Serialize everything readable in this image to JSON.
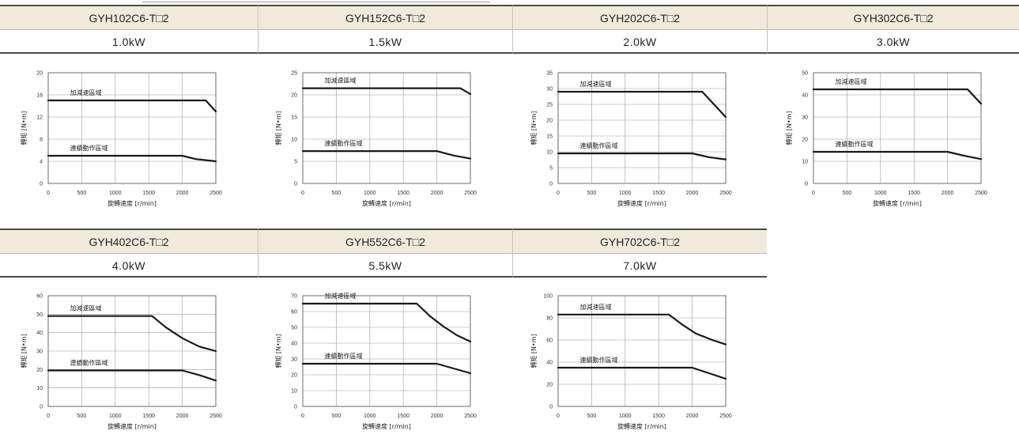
{
  "header_rows": [
    {
      "cells": [
        {
          "model": "GYH102C6-T□2",
          "power": "1.0kW"
        },
        {
          "model": "GYH152C6-T□2",
          "power": "1.5kW"
        },
        {
          "model": "GYH202C6-T□2",
          "power": "2.0kW"
        },
        {
          "model": "GYH302C6-T□2",
          "power": "3.0kW"
        }
      ]
    },
    {
      "cells": [
        {
          "model": "GYH402C6-T□2",
          "power": "4.0kW"
        },
        {
          "model": "GYH552C6-T□2",
          "power": "5.5kW"
        },
        {
          "model": "GYH702C6-T□2",
          "power": "7.0kW"
        }
      ]
    }
  ],
  "chart_data": [
    {
      "type": "line",
      "title": "",
      "xlabel": "旋轉速度 [r/min]",
      "ylabel": "轉矩 [N•m]",
      "xlim": [
        0,
        2500
      ],
      "ylim": [
        0,
        20
      ],
      "x_ticks": [
        0,
        500,
        1000,
        1500,
        2000,
        2500
      ],
      "y_ticks": [
        0,
        4,
        8,
        12,
        16,
        20
      ],
      "grid": true,
      "series": [
        {
          "name": "加減速區域",
          "points": [
            [
              0,
              15
            ],
            [
              2350,
              15
            ],
            [
              2500,
              13
            ]
          ]
        },
        {
          "name": "連續動作區域",
          "points": [
            [
              0,
              5
            ],
            [
              2000,
              5
            ],
            [
              2200,
              4.4
            ],
            [
              2500,
              4
            ]
          ]
        }
      ]
    },
    {
      "type": "line",
      "title": "",
      "xlabel": "旋轉速度 [r/min]",
      "ylabel": "轉矩 [N•m]",
      "xlim": [
        0,
        2500
      ],
      "ylim": [
        0,
        25
      ],
      "x_ticks": [
        0,
        500,
        1000,
        1500,
        2000,
        2500
      ],
      "y_ticks": [
        0,
        5,
        10,
        15,
        20,
        25
      ],
      "grid": true,
      "series": [
        {
          "name": "加減速區域",
          "points": [
            [
              0,
              21.5
            ],
            [
              2350,
              21.5
            ],
            [
              2500,
              20.2
            ]
          ]
        },
        {
          "name": "連續動作區域",
          "points": [
            [
              0,
              7.3
            ],
            [
              2000,
              7.3
            ],
            [
              2250,
              6.3
            ],
            [
              2500,
              5.6
            ]
          ]
        }
      ]
    },
    {
      "type": "line",
      "title": "",
      "xlabel": "旋轉速度 [r/min]",
      "ylabel": "轉矩 [N•m]",
      "xlim": [
        0,
        2500
      ],
      "ylim": [
        0,
        35
      ],
      "x_ticks": [
        0,
        500,
        1000,
        1500,
        2000,
        2500
      ],
      "y_ticks": [
        0,
        5,
        10,
        15,
        20,
        25,
        30,
        35
      ],
      "grid": true,
      "series": [
        {
          "name": "加減速區域",
          "points": [
            [
              0,
              29
            ],
            [
              2150,
              29
            ],
            [
              2500,
              21
            ]
          ]
        },
        {
          "name": "連續動作區域",
          "points": [
            [
              0,
              9.5
            ],
            [
              2000,
              9.5
            ],
            [
              2250,
              8.3
            ],
            [
              2500,
              7.6
            ]
          ]
        }
      ]
    },
    {
      "type": "line",
      "title": "",
      "xlabel": "旋轉速度 [r/min]",
      "ylabel": "轉矩 [N•m]",
      "xlim": [
        0,
        2500
      ],
      "ylim": [
        0,
        50
      ],
      "x_ticks": [
        0,
        500,
        1000,
        1500,
        2000,
        2500
      ],
      "y_ticks": [
        0,
        10,
        20,
        30,
        40,
        50
      ],
      "grid": true,
      "series": [
        {
          "name": "加減速區域",
          "points": [
            [
              0,
              42.5
            ],
            [
              2300,
              42.5
            ],
            [
              2500,
              36
            ]
          ]
        },
        {
          "name": "連續動作區域",
          "points": [
            [
              0,
              14.3
            ],
            [
              2000,
              14.3
            ],
            [
              2250,
              12.5
            ],
            [
              2500,
              11
            ]
          ]
        }
      ]
    },
    {
      "type": "line",
      "title": "",
      "xlabel": "旋轉速度 [r/min]",
      "ylabel": "轉矩 [N•m]",
      "xlim": [
        0,
        2500
      ],
      "ylim": [
        0,
        60
      ],
      "x_ticks": [
        0,
        500,
        1000,
        1500,
        2000,
        2500
      ],
      "y_ticks": [
        0,
        10,
        20,
        30,
        40,
        50,
        60
      ],
      "grid": true,
      "series": [
        {
          "name": "加減速區域",
          "points": [
            [
              0,
              49
            ],
            [
              1550,
              49
            ],
            [
              1750,
              43
            ],
            [
              2000,
              37
            ],
            [
              2250,
              32.5
            ],
            [
              2500,
              30
            ]
          ]
        },
        {
          "name": "連續動作區域",
          "points": [
            [
              0,
              19.5
            ],
            [
              2000,
              19.5
            ],
            [
              2250,
              17
            ],
            [
              2500,
              14
            ]
          ]
        }
      ]
    },
    {
      "type": "line",
      "title": "",
      "xlabel": "旋轉速度 [r/min]",
      "ylabel": "轉矩 [N•m]",
      "xlim": [
        0,
        2500
      ],
      "ylim": [
        0,
        70
      ],
      "x_ticks": [
        0,
        500,
        1000,
        1500,
        2000,
        2500
      ],
      "y_ticks": [
        0,
        10,
        20,
        30,
        40,
        50,
        60,
        70
      ],
      "grid": true,
      "series": [
        {
          "name": "加減速區域",
          "points": [
            [
              0,
              65
            ],
            [
              1700,
              65
            ],
            [
              1900,
              57
            ],
            [
              2100,
              50.5
            ],
            [
              2300,
              45
            ],
            [
              2500,
              41
            ]
          ]
        },
        {
          "name": "連續動作區域",
          "points": [
            [
              0,
              27
            ],
            [
              2000,
              27
            ],
            [
              2250,
              24
            ],
            [
              2500,
              21
            ]
          ]
        }
      ]
    },
    {
      "type": "line",
      "title": "",
      "xlabel": "旋轉速度 [r/min]",
      "ylabel": "轉矩 [N•m]",
      "xlim": [
        0,
        2500
      ],
      "ylim": [
        0,
        100
      ],
      "x_ticks": [
        0,
        500,
        1000,
        1500,
        2000,
        2500
      ],
      "y_ticks": [
        0,
        20,
        40,
        60,
        80,
        100
      ],
      "grid": true,
      "series": [
        {
          "name": "加減速區域",
          "points": [
            [
              0,
              83
            ],
            [
              1650,
              83
            ],
            [
              1850,
              74
            ],
            [
              2050,
              66
            ],
            [
              2300,
              60
            ],
            [
              2500,
              56
            ]
          ]
        },
        {
          "name": "連續動作區域",
          "points": [
            [
              0,
              35
            ],
            [
              2000,
              35
            ],
            [
              2250,
              30
            ],
            [
              2500,
              25
            ]
          ]
        }
      ]
    }
  ]
}
